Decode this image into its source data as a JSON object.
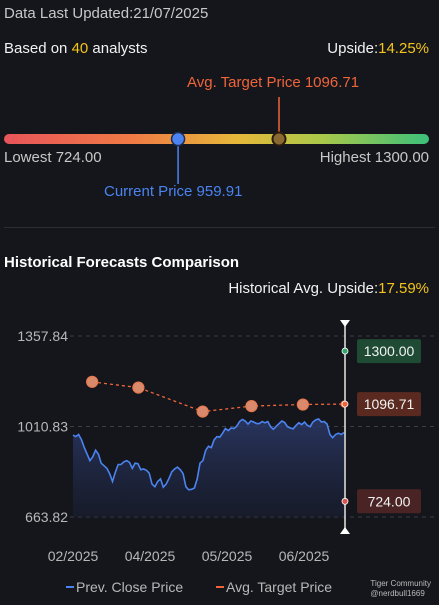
{
  "header": {
    "updated": "Data Last Updated:21/07/2025",
    "based_prefix": "Based on ",
    "analyst_count": "40",
    "based_suffix": " analysts",
    "upside_label": "Upside:",
    "upside_value": "14.25%"
  },
  "range": {
    "avg_label": "Avg. Target Price 1096.71",
    "lowest_label": "Lowest 724.00",
    "highest_label": "Highest 1300.00",
    "current_label": "Current Price 959.91",
    "low": 724.0,
    "high": 1300.0,
    "avg": 1096.71,
    "current": 959.91
  },
  "historical": {
    "title": "Historical Forecasts Comparison",
    "upside_label": "Historical Avg. Upside:",
    "upside_value": "17.59%"
  },
  "chart_data": {
    "type": "line",
    "ylim": [
      663.82,
      1357.84
    ],
    "yticks": [
      "1357.84",
      "1010.83",
      "663.82"
    ],
    "xticks": [
      "02/2025",
      "04/2025",
      "05/2025",
      "06/2025"
    ],
    "series": [
      {
        "name": "Prev. Close Price",
        "color": "#4b84f0",
        "values": [
          978,
          972,
          980,
          960,
          930,
          905,
          880,
          895,
          920,
          905,
          870,
          860,
          850,
          830,
          800,
          835,
          865,
          865,
          875,
          880,
          873,
          850,
          870,
          868,
          845,
          848,
          843,
          832,
          790,
          780,
          800,
          810,
          778,
          790,
          812,
          837,
          848,
          855,
          845,
          830,
          780,
          768,
          770,
          775,
          810,
          870,
          880,
          920,
          935,
          930,
          960,
          972,
          970,
          985,
          1003,
          995,
          1005,
          1003,
          1012,
          1030,
          1038,
          1032,
          1020,
          1032,
          1028,
          1022,
          1022,
          1030,
          1025,
          1030,
          1010,
          1000,
          1012,
          1022,
          1032,
          1026,
          1010,
          1005,
          1002,
          1015,
          1025,
          1018,
          1028,
          1015,
          1010,
          1028,
          1036,
          1040,
          1028,
          1030,
          1020,
          980,
          968,
          980,
          985,
          980,
          988
        ]
      },
      {
        "name": "Avg. Target Price",
        "color": "#f0643a",
        "points": [
          {
            "x": 0.02,
            "y": 1182
          },
          {
            "x": 0.2,
            "y": 1160
          },
          {
            "x": 0.45,
            "y": 1068
          },
          {
            "x": 0.64,
            "y": 1089
          },
          {
            "x": 0.84,
            "y": 1095
          },
          {
            "x": 1.0,
            "y": 1096.71
          }
        ]
      }
    ],
    "markers": {
      "high": {
        "value": 1300.0,
        "label": "1300.00",
        "color": "#2fa86a",
        "bg": "#1f4a33"
      },
      "avg": {
        "value": 1096.71,
        "label": "1096.71",
        "color": "#f0643a",
        "bg": "#5a2a20"
      },
      "low": {
        "value": 724.0,
        "label": "724.00",
        "color": "#d9534f",
        "bg": "#4a2324"
      }
    },
    "legend": [
      {
        "label": "Prev. Close Price",
        "color": "#4b84f0"
      },
      {
        "label": "Avg. Target Price",
        "color": "#f0643a"
      }
    ]
  },
  "branding": {
    "logo_text_1": "Tiger Community",
    "logo_text_2": "@nerdbull1669"
  }
}
